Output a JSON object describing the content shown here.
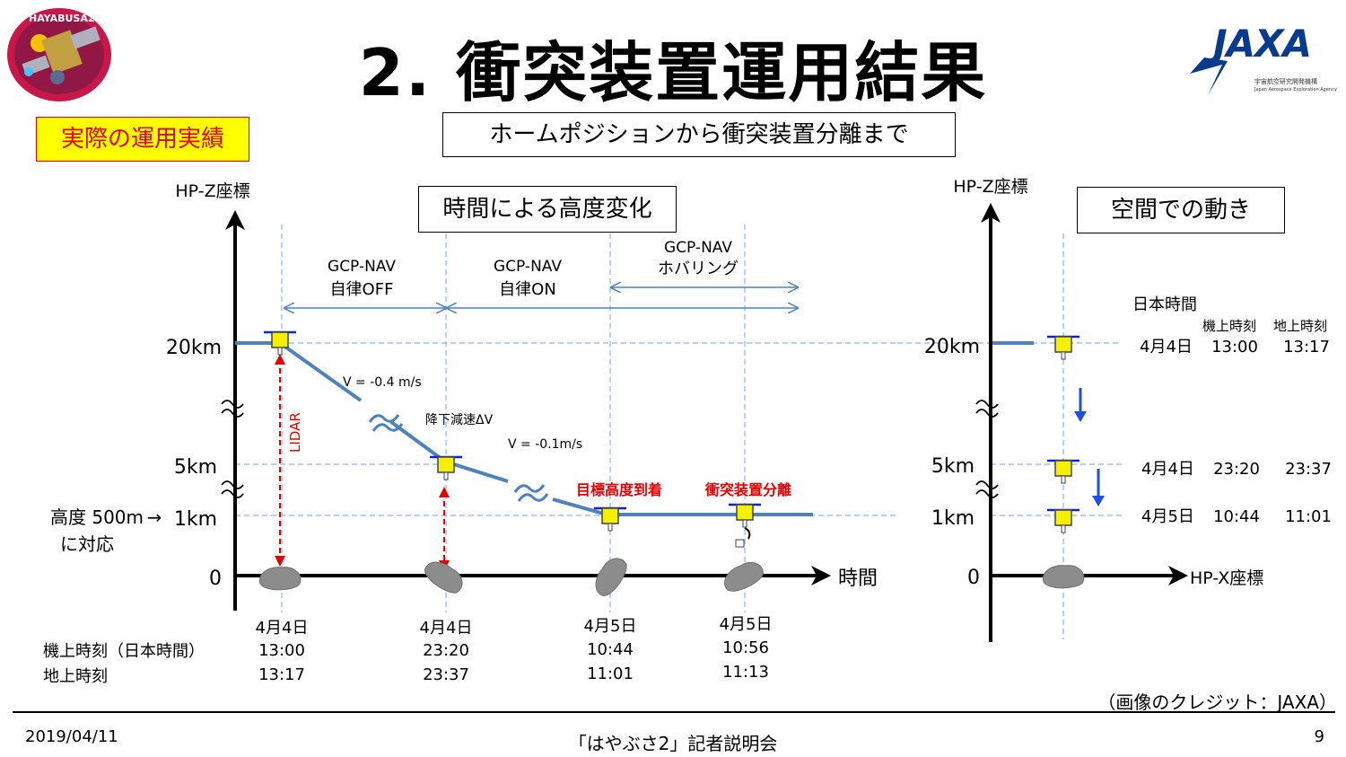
{
  "header": {
    "title": "2. 衝突装置運用結果",
    "mission_logo_text": "HAYABUSA2",
    "agency_logo_text": "JAXA",
    "agency_subtitle": "宇宙航空研究開発機構",
    "agency_subtitle_en": "Japan Aerospace Exploration Agency"
  },
  "badge": "実際の運用実績",
  "subtitle_box": "ホームポジションから衝突装置分離まで",
  "left_panel": {
    "box_title": "時間による高度変化",
    "y_axis_label": "HP-Z座標",
    "x_axis_label": "時間",
    "y_ticks": [
      "20km",
      "5km",
      "1km",
      "0"
    ],
    "altitude_note": [
      "高度 500m",
      "に対応"
    ],
    "arrow": "→",
    "phases": [
      {
        "line1": "GCP-NAV",
        "line2": "自律OFF"
      },
      {
        "line1": "GCP-NAV",
        "line2": "自律ON"
      },
      {
        "line1": "GCP-NAV",
        "line2": "ホバリング"
      }
    ],
    "annotations": {
      "v1": "V = -0.4 m/s",
      "dv": "降下減速ΔV",
      "v2": "V = -0.1m/s",
      "lidar": "LIDAR",
      "target": "目標高度到着",
      "separation": "衝突装置分離"
    },
    "time_rows": {
      "row1_label": "機上時刻（日本時間）",
      "row2_label": "地上時刻"
    },
    "events": [
      {
        "date": "4月4日",
        "onboard": "13:00",
        "ground": "13:17"
      },
      {
        "date": "4月4日",
        "onboard": "23:20",
        "ground": "23:37"
      },
      {
        "date": "4月5日",
        "onboard": "10:44",
        "ground": "11:01"
      },
      {
        "date": "4月5日",
        "onboard": "10:56",
        "ground": "11:13"
      }
    ]
  },
  "right_panel": {
    "box_title": "空間での動き",
    "y_axis_label": "HP-Z座標",
    "x_axis_label": "HP-X座標",
    "y_ticks": [
      "20km",
      "5km",
      "1km",
      "0"
    ],
    "time_header": "日本時間",
    "col1": "機上時刻",
    "col2": "地上時刻",
    "rows": [
      {
        "date": "4月4日",
        "onboard": "13:00",
        "ground": "13:17"
      },
      {
        "date": "4月4日",
        "onboard": "23:20",
        "ground": "23:37"
      },
      {
        "date": "4月5日",
        "onboard": "10:44",
        "ground": "11:01"
      }
    ]
  },
  "credit": "（画像のクレジット：JAXA）",
  "footer": {
    "date": "2019/04/11",
    "event": "「はやぶさ2」記者説明会",
    "page": "9"
  },
  "colors": {
    "trajectory": "#4f81bd",
    "dashed_guides": "#8db3e2",
    "red": "#e00000",
    "yellow": "#ffff00",
    "rock": "#8c8c8c",
    "blue_arrow": "#1f4fe0"
  }
}
